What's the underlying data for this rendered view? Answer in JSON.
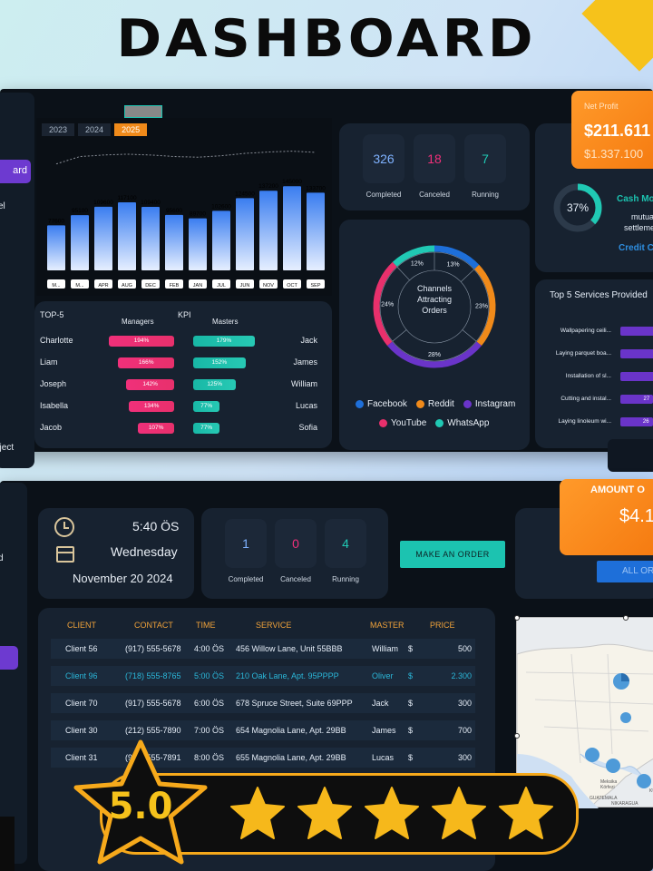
{
  "title": "DASHBOARD",
  "top": {
    "years": [
      "2023",
      "2024",
      "2025"
    ],
    "active_year": "2025",
    "sidebar": {
      "button_label": "ard",
      "text1": "el",
      "text2": "oject"
    },
    "bar_chart": {
      "months": [
        "M...",
        "M...",
        "APR",
        "AUG",
        "DEC",
        "FEB",
        "JAN",
        "JUL",
        "JUN",
        "NOV",
        "OCT",
        "SEP"
      ],
      "values": [
        77600,
        95100,
        109600,
        117100,
        109400,
        95600,
        89700,
        102600,
        124500,
        137200,
        145000,
        133700
      ]
    },
    "kpi": {
      "top_label": "TOP-5",
      "kpi_label": "KPI",
      "managers_label": "Managers",
      "masters_label": "Masters",
      "managers": [
        {
          "name": "Charlotte",
          "pct": "194%",
          "value": 194
        },
        {
          "name": "Liam",
          "pct": "166%",
          "value": 166
        },
        {
          "name": "Joseph",
          "pct": "142%",
          "value": 142
        },
        {
          "name": "Isabella",
          "pct": "134%",
          "value": 134
        },
        {
          "name": "Jacob",
          "pct": "107%",
          "value": 107
        }
      ],
      "masters": [
        {
          "name": "Jack",
          "pct": "179%",
          "value": 179
        },
        {
          "name": "James",
          "pct": "152%",
          "value": 152
        },
        {
          "name": "William",
          "pct": "125%",
          "value": 125
        },
        {
          "name": "Lucas",
          "pct": "77%",
          "value": 77
        },
        {
          "name": "Sofia",
          "pct": "77%",
          "value": 77
        }
      ]
    },
    "stats": [
      {
        "value": "326",
        "label": "Completed",
        "color": "#7fb2ff"
      },
      {
        "value": "18",
        "label": "Canceled",
        "color": "#f0307a"
      },
      {
        "value": "7",
        "label": "Running",
        "color": "#20c9b4"
      }
    ],
    "channels": {
      "center": "Channels Attracting Orders",
      "slices": [
        {
          "label": "13%",
          "value": 13,
          "color": "#1e6fd9"
        },
        {
          "label": "23%",
          "value": 23,
          "color": "#f08a1a"
        },
        {
          "label": "28%",
          "value": 28,
          "color": "#6a34c9"
        },
        {
          "label": "24%",
          "value": 24,
          "color": "#e8306c"
        },
        {
          "label": "12%",
          "value": 12,
          "color": "#20c9b4"
        }
      ],
      "legend": [
        {
          "name": "Facebook",
          "color": "#1e6fd9"
        },
        {
          "name": "Reddit",
          "color": "#f08a1a"
        },
        {
          "name": "Instagram",
          "color": "#6a34c9"
        },
        {
          "name": "YouTube",
          "color": "#e8306c"
        },
        {
          "name": "WhatsApp",
          "color": "#20c9b4"
        }
      ]
    },
    "net_profit": {
      "label": "Net Profit",
      "value": "$211.611",
      "sub": "$1.337.100"
    },
    "cash": {
      "pct": "37%",
      "title": "Cash Mo",
      "line1": "mutua",
      "line2": "settleme",
      "link": "Credit C"
    },
    "services": {
      "title": "Top 5 Services Provided",
      "items": [
        {
          "name": "Wallpapering ceili...",
          "value": 100,
          "label": ""
        },
        {
          "name": "Laying parquet boa...",
          "value": 100,
          "label": ""
        },
        {
          "name": "Installation of sl...",
          "value": 100,
          "label": ""
        },
        {
          "name": "Cutting and instal...",
          "value": 27,
          "label": "27"
        },
        {
          "name": "Laying linoleum wi...",
          "value": 26,
          "label": "26"
        }
      ]
    }
  },
  "bottom": {
    "sidebar": {
      "text1": "d"
    },
    "clock": {
      "time": "5:40 ÖS",
      "day": "Wednesday",
      "date": "November 20 2024"
    },
    "stats": [
      {
        "value": "1",
        "label": "Completed",
        "color": "#7fb2ff"
      },
      {
        "value": "0",
        "label": "Canceled",
        "color": "#f0307a"
      },
      {
        "value": "4",
        "label": "Running",
        "color": "#20c9b4"
      }
    ],
    "order_button": "MAKE AN ORDER",
    "amount": {
      "label": "AMOUNT O",
      "value": "$4.1",
      "button": "ALL OR"
    },
    "table": {
      "headers": [
        "CLIENT",
        "CONTACT",
        "TIME",
        "SERVICE",
        "MASTER",
        "PRICE"
      ],
      "rows": [
        {
          "client": "Client 56",
          "contact": "(917) 555-5678",
          "time": "4:00 ÖS",
          "service": "456 Willow Lane, Unit 55BBB",
          "master": "William",
          "cur": "$",
          "price": "500",
          "hl": false
        },
        {
          "client": "Client 96",
          "contact": "(718) 555-8765",
          "time": "5:00 ÖS",
          "service": "210 Oak Lane, Apt. 95PPPP",
          "master": "Oliver",
          "cur": "$",
          "price": "2.300",
          "hl": true
        },
        {
          "client": "Client 70",
          "contact": "(917) 555-5678",
          "time": "6:00 ÖS",
          "service": "678 Spruce Street, Suite 69PPP",
          "master": "Jack",
          "cur": "$",
          "price": "300",
          "hl": false
        },
        {
          "client": "Client 30",
          "contact": "(212) 555-7890",
          "time": "7:00 ÖS",
          "service": "654 Magnolia Lane, Apt. 29BB",
          "master": "James",
          "cur": "$",
          "price": "700",
          "hl": false
        },
        {
          "client": "Client 31",
          "contact": "(917) 555-7891",
          "time": "8:00 ÖS",
          "service": "655 Magnolia Lane, Apt. 29BB",
          "master": "Lucas",
          "cur": "$",
          "price": "300",
          "hl": false
        }
      ]
    },
    "map": {
      "labels": [
        "Meksika Körfezi",
        "GUATEMALA",
        "NIKARAGUA",
        "KÜ"
      ]
    }
  },
  "rating": {
    "score": "5.0",
    "stars": 5
  }
}
